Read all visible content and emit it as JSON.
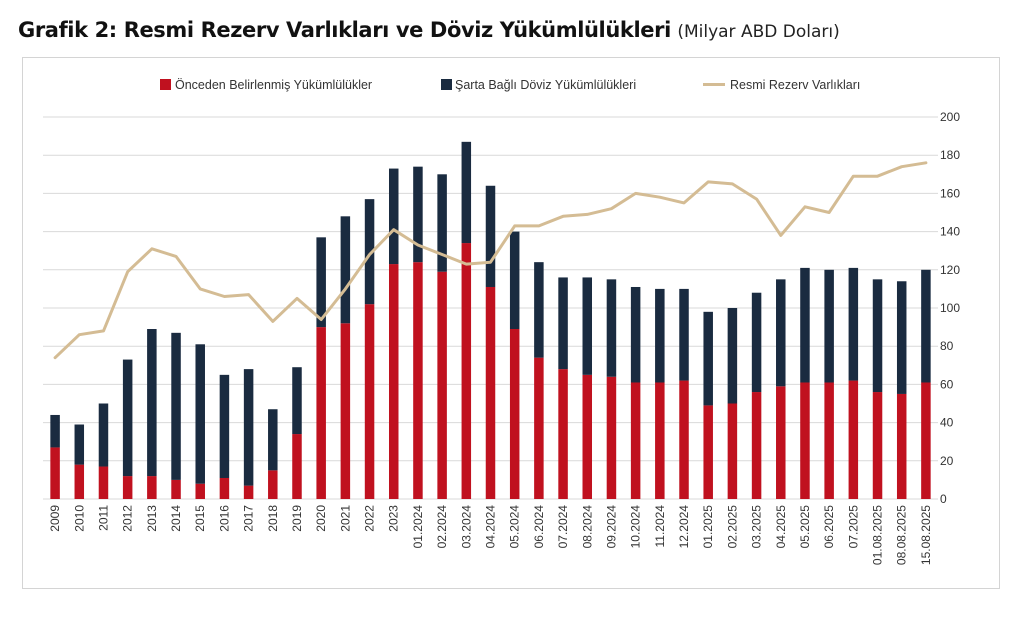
{
  "title": "Grafik 2: Resmi Rezerv Varlıkları ve Döviz Yükümlülükleri",
  "subtitle": "(Milyar ABD Doları)",
  "colors": {
    "predetermined": "#c0111f",
    "contingent": "#1a2b40",
    "reserves": "#d4bc94",
    "grid": "#d9d9d9"
  },
  "chart_data": {
    "type": "bar",
    "stacked": true,
    "categories": [
      "2009",
      "2010",
      "2011",
      "2012",
      "2013",
      "2014",
      "2015",
      "2016",
      "2017",
      "2018",
      "2019",
      "2020",
      "2021",
      "2022",
      "2023",
      "01.2024",
      "02.2024",
      "03.2024",
      "04.2024",
      "05.2024",
      "06.2024",
      "07.2024",
      "08.2024",
      "09.2024",
      "10.2024",
      "11.2024",
      "12.2024",
      "01.2025",
      "02.2025",
      "03.2025",
      "04.2025",
      "05.2025",
      "06.2025",
      "07.2025",
      "01.08.2025",
      "08.08.2025",
      "15.08.2025"
    ],
    "series": [
      {
        "name": "Önceden Belirlenmiş Yükümlülükler",
        "kind": "bar",
        "values": [
          27,
          18,
          17,
          12,
          12,
          10,
          8,
          11,
          7,
          15,
          34,
          90,
          92,
          102,
          123,
          124,
          119,
          134,
          111,
          89,
          74,
          68,
          65,
          64,
          61,
          61,
          62,
          49,
          50,
          56,
          59,
          61,
          61,
          62,
          56,
          55,
          61
        ]
      },
      {
        "name": "Şarta Bağlı Döviz Yükümlülükleri",
        "kind": "bar",
        "values": [
          17,
          21,
          33,
          61,
          77,
          77,
          73,
          54,
          61,
          32,
          35,
          47,
          56,
          55,
          50,
          50,
          51,
          53,
          53,
          51,
          50,
          48,
          51,
          51,
          50,
          49,
          48,
          49,
          50,
          52,
          56,
          60,
          59,
          59,
          59,
          59,
          59
        ]
      },
      {
        "name": "Resmi Rezerv Varlıkları",
        "kind": "line",
        "values": [
          74,
          86,
          88,
          119,
          131,
          127,
          110,
          106,
          107,
          93,
          105,
          94,
          110,
          128,
          141,
          133,
          128,
          123,
          124,
          143,
          143,
          148,
          149,
          152,
          160,
          158,
          155,
          166,
          165,
          157,
          138,
          153,
          150,
          169,
          169,
          174,
          176
        ]
      }
    ],
    "ylim": [
      0,
      200
    ],
    "yticks": [
      "0",
      "20",
      "40",
      "60",
      "80",
      "100",
      "120",
      "140",
      "160",
      "180",
      "200"
    ],
    "y_axis_position": "right",
    "grid": true,
    "legend_position": "top"
  }
}
